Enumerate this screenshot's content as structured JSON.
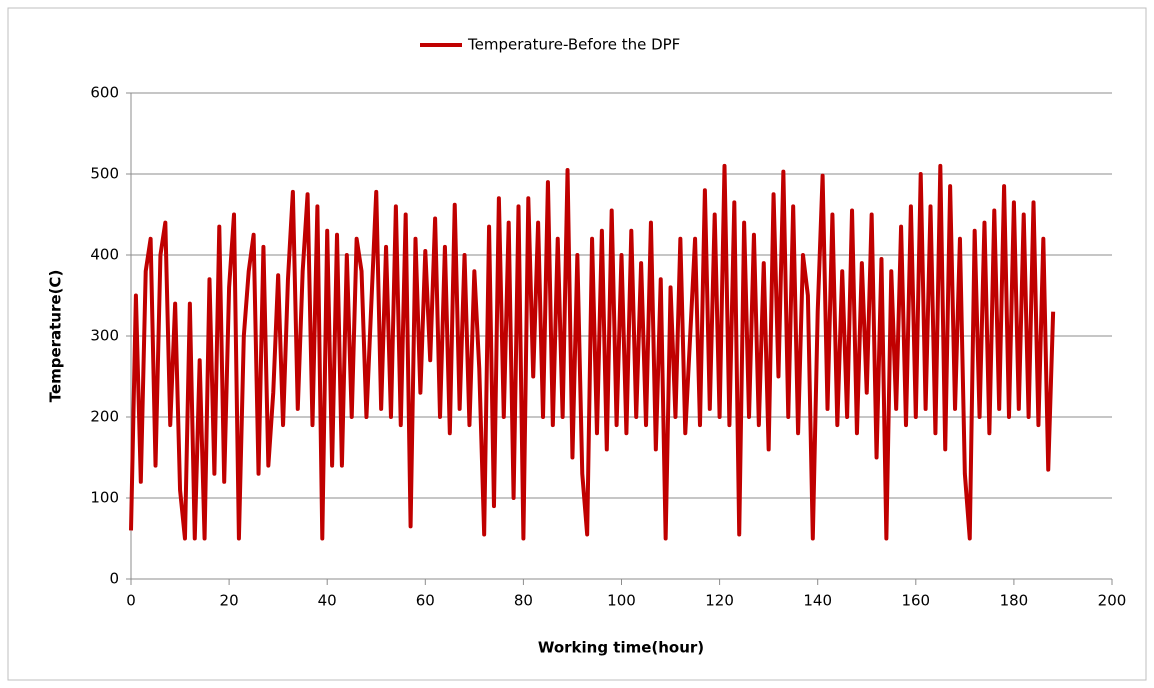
{
  "chart_data": {
    "type": "line",
    "x_label": "Working time(hour)",
    "y_label": "Temperature(C)",
    "xlim": [
      0,
      200
    ],
    "xticks": [
      0,
      20,
      40,
      60,
      80,
      100,
      120,
      140,
      160,
      180,
      200
    ],
    "ylim": [
      0,
      600
    ],
    "yticks": [
      0,
      100,
      200,
      300,
      400,
      500,
      600
    ],
    "grid": true,
    "legend": "top",
    "x": [
      0,
      1,
      2,
      3,
      4,
      5,
      6,
      7,
      8,
      9,
      10,
      11,
      12,
      13,
      14,
      15,
      16,
      17,
      18,
      19,
      20,
      21,
      22,
      23,
      24,
      25,
      26,
      27,
      28,
      29,
      30,
      31,
      32,
      33,
      34,
      35,
      36,
      37,
      38,
      39,
      40,
      41,
      42,
      43,
      44,
      45,
      46,
      47,
      48,
      49,
      50,
      51,
      52,
      53,
      54,
      55,
      56,
      57,
      58,
      59,
      60,
      61,
      62,
      63,
      64,
      65,
      66,
      67,
      68,
      69,
      70,
      71,
      72,
      73,
      74,
      75,
      76,
      77,
      78,
      79,
      80,
      81,
      82,
      83,
      84,
      85,
      86,
      87,
      88,
      89,
      90,
      91,
      92,
      93,
      94,
      95,
      96,
      97,
      98,
      99,
      100,
      101,
      102,
      103,
      104,
      105,
      106,
      107,
      108,
      109,
      110,
      111,
      112,
      113,
      114,
      115,
      116,
      117,
      118,
      119,
      120,
      121,
      122,
      123,
      124,
      125,
      126,
      127,
      128,
      129,
      130,
      131,
      132,
      133,
      134,
      135,
      136,
      137,
      138,
      139,
      140,
      141,
      142,
      143,
      144,
      145,
      146,
      147,
      148,
      149,
      150,
      151,
      152,
      153,
      154,
      155,
      156,
      157,
      158,
      159,
      160,
      161,
      162,
      163,
      164,
      165,
      166,
      167,
      168,
      169,
      170,
      171,
      172,
      173,
      174,
      175,
      176,
      177,
      178,
      179,
      180,
      181,
      182,
      183,
      184,
      185,
      186,
      187,
      188
    ],
    "series": [
      {
        "name": "Temperature-Before the DPF",
        "color": "#c00000",
        "values": [
          60,
          350,
          120,
          380,
          420,
          140,
          400,
          440,
          190,
          340,
          110,
          50,
          340,
          50,
          270,
          50,
          370,
          130,
          435,
          120,
          360,
          450,
          50,
          300,
          380,
          425,
          130,
          410,
          140,
          230,
          375,
          190,
          370,
          478,
          210,
          380,
          475,
          190,
          460,
          50,
          430,
          140,
          425,
          140,
          400,
          200,
          420,
          380,
          200,
          340,
          478,
          210,
          410,
          200,
          460,
          190,
          450,
          65,
          420,
          230,
          405,
          270,
          445,
          200,
          410,
          180,
          462,
          210,
          400,
          190,
          380,
          260,
          55,
          435,
          90,
          470,
          200,
          440,
          100,
          460,
          50,
          470,
          250,
          440,
          200,
          490,
          190,
          420,
          200,
          505,
          150,
          400,
          130,
          55,
          420,
          180,
          430,
          160,
          455,
          190,
          400,
          180,
          430,
          200,
          390,
          190,
          440,
          160,
          370,
          50,
          360,
          200,
          420,
          180,
          300,
          420,
          190,
          480,
          210,
          450,
          200,
          510,
          190,
          465,
          55,
          440,
          200,
          425,
          190,
          390,
          160,
          475,
          250,
          503,
          200,
          460,
          180,
          400,
          350,
          50,
          330,
          498,
          210,
          450,
          190,
          380,
          200,
          455,
          180,
          390,
          230,
          450,
          150,
          395,
          50,
          380,
          210,
          435,
          190,
          460,
          200,
          500,
          210,
          460,
          180,
          510,
          160,
          485,
          210,
          420,
          130,
          50,
          430,
          200,
          440,
          180,
          455,
          210,
          485,
          200,
          465,
          210,
          450,
          200,
          465,
          190,
          420,
          135,
          330
        ]
      }
    ]
  }
}
